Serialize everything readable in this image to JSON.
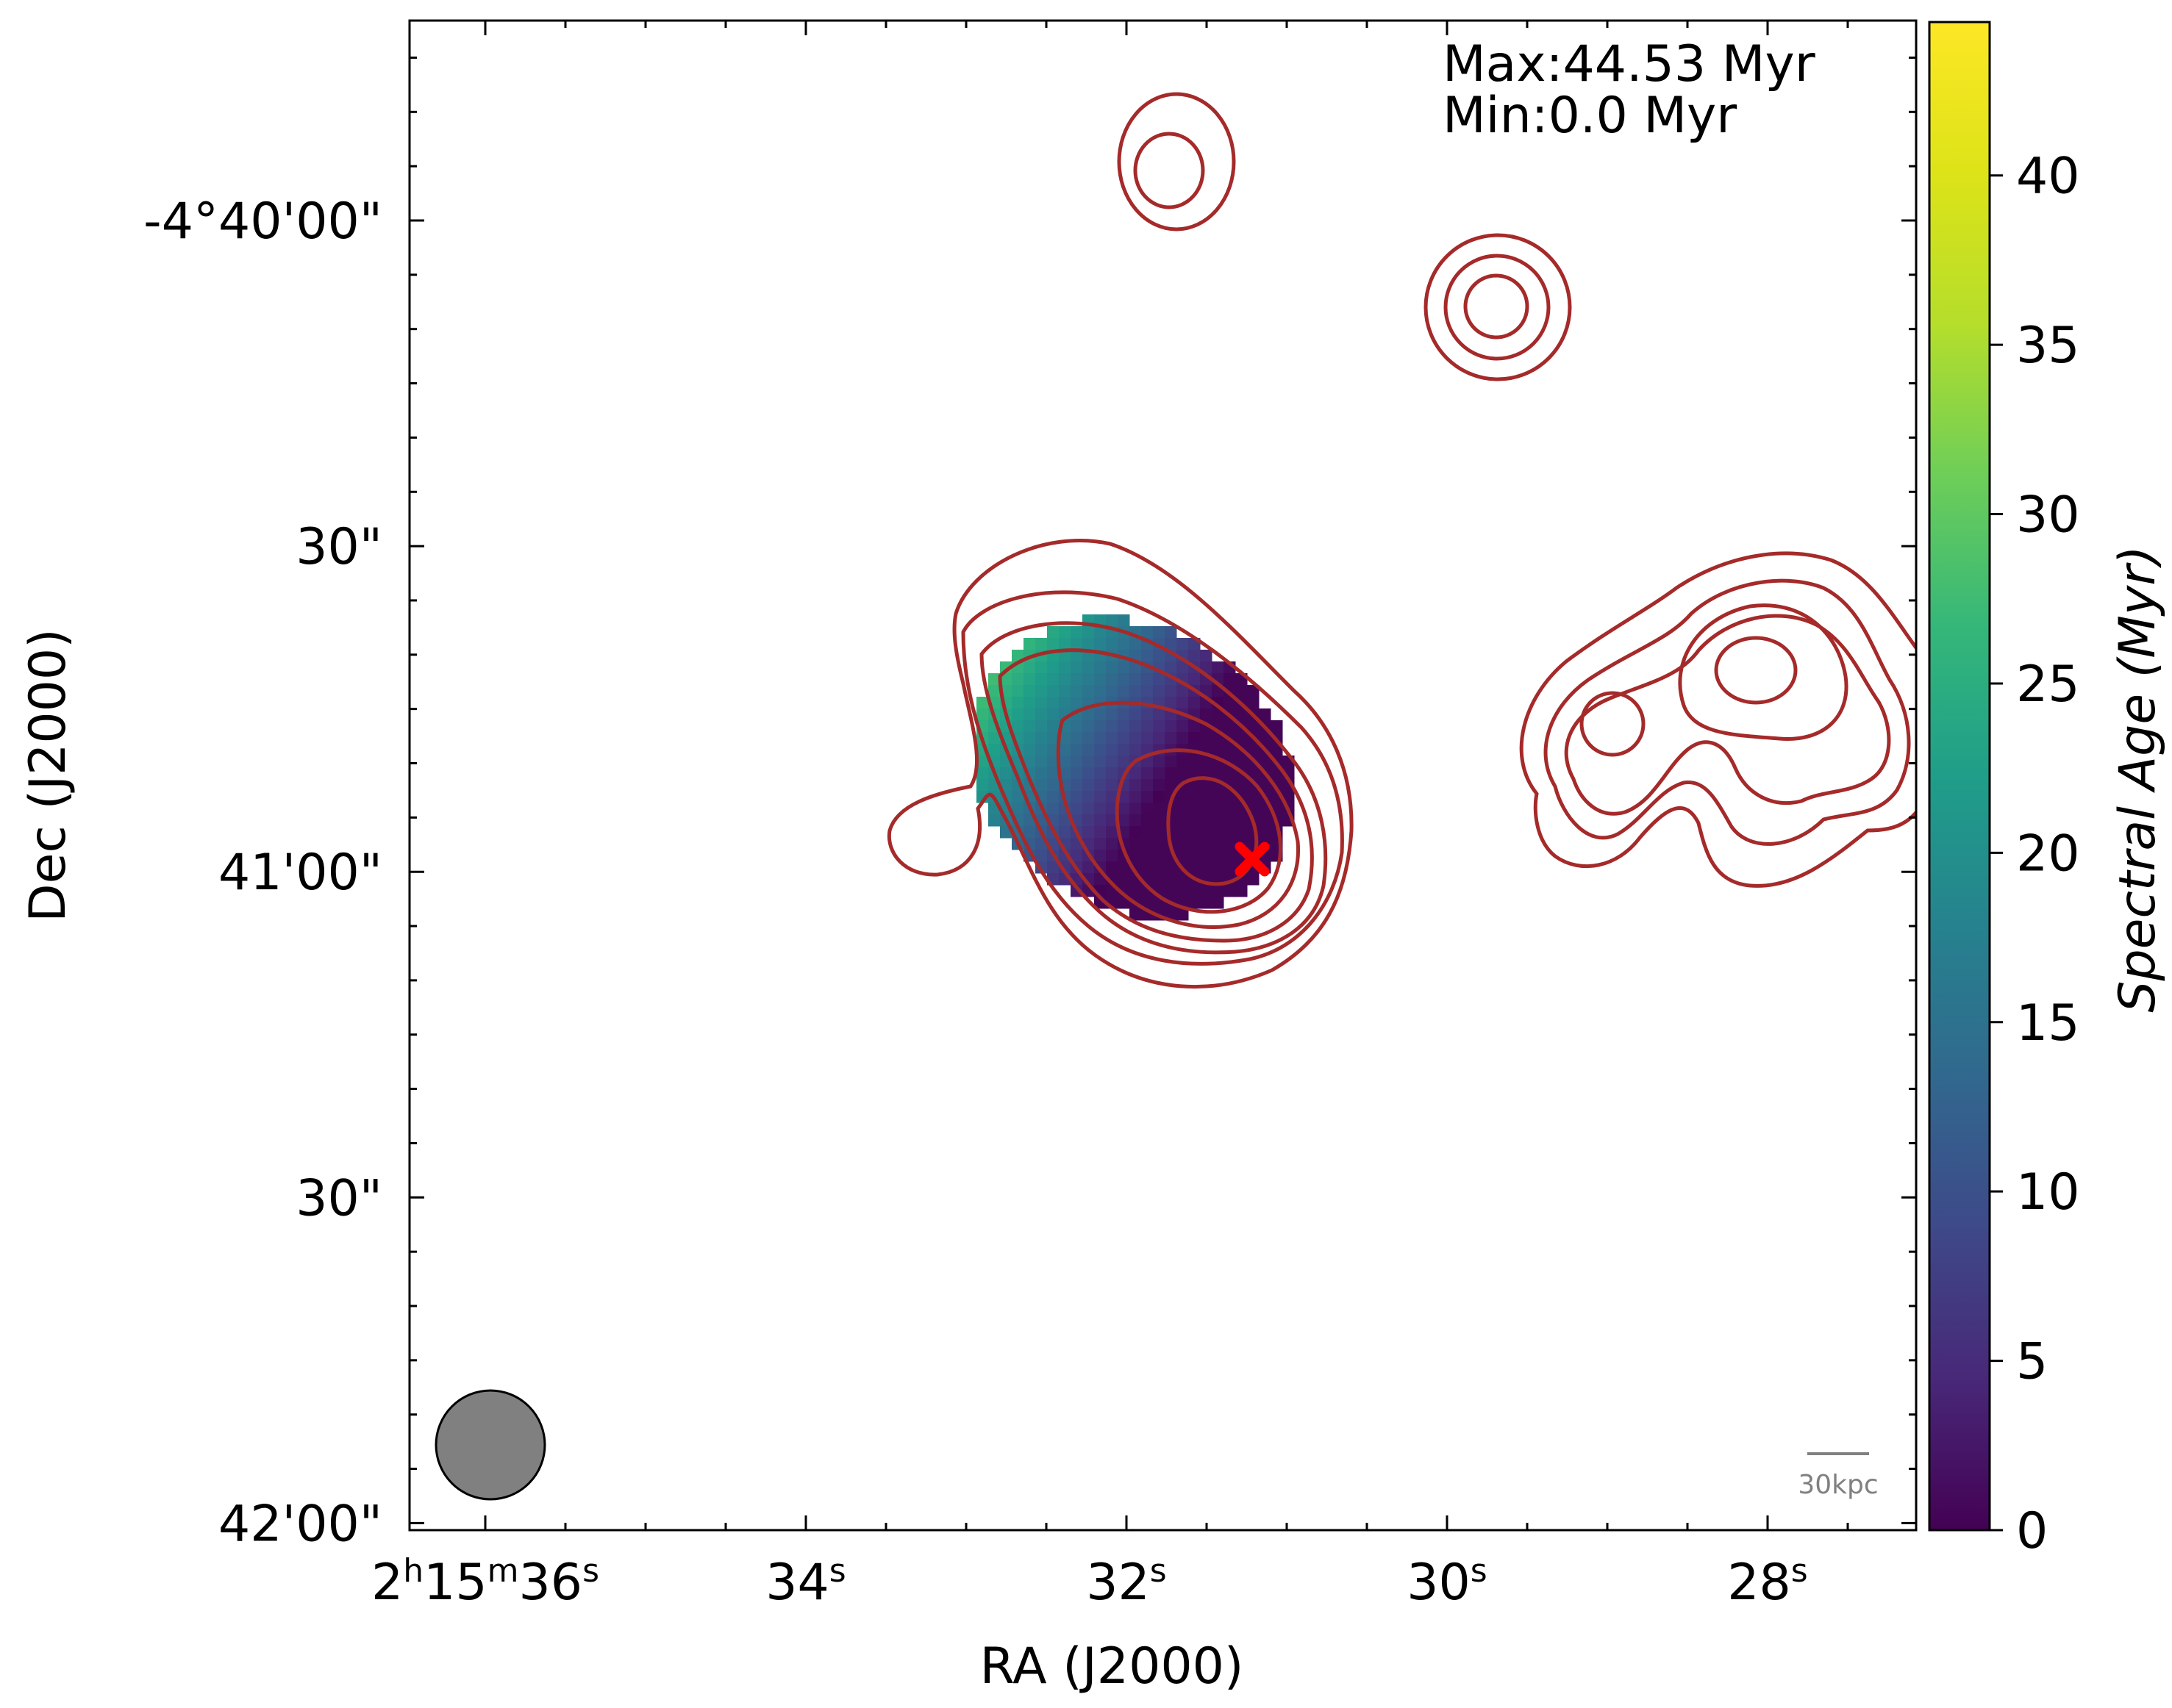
{
  "chart_data": {
    "type": "heatmap",
    "xlabel": "RA (J2000)",
    "ylabel": "Dec (J2000)",
    "x_ticks": [
      {
        "h": "2",
        "m": "15",
        "s": "36",
        "sec": 36
      },
      {
        "s": "34",
        "sec": 34
      },
      {
        "s": "32",
        "sec": 32
      },
      {
        "s": "30",
        "sec": 30
      },
      {
        "s": "28",
        "sec": 28
      }
    ],
    "y_ticks": [
      {
        "label": "-4°40'00\"",
        "arcsec": 0
      },
      {
        "label": "30\"",
        "arcsec": 30
      },
      {
        "label": "41'00\"",
        "arcsec": 60
      },
      {
        "label": "30\"",
        "arcsec": 90
      },
      {
        "label": "42'00\"",
        "arcsec": 120
      }
    ],
    "x_range_sec": [
      36.4,
      27.2
    ],
    "y_range_arcsec": [
      -18,
      120
    ],
    "annotations": {
      "max_text": "Max:44.53 Myr",
      "min_text": "Min:0.0 Myr",
      "scalebar_label": "30kpc"
    },
    "colorbar": {
      "label": "Spectral Age (Myr)",
      "min": 0,
      "max": 44.53,
      "ticks": [
        {
          "value": 0,
          "label": "0"
        },
        {
          "value": 5,
          "label": "5"
        },
        {
          "value": 10,
          "label": "10"
        },
        {
          "value": 15,
          "label": "15"
        },
        {
          "value": 20,
          "label": "20"
        },
        {
          "value": 25,
          "label": "25"
        },
        {
          "value": 30,
          "label": "30"
        },
        {
          "value": 35,
          "label": "35"
        },
        {
          "value": 40,
          "label": "40"
        }
      ],
      "colormap": "viridis"
    },
    "core_marker": {
      "ra_sec": 31.25,
      "dec_arcsec": 59.2,
      "color": "#ff0000"
    },
    "contour_color": "#a52a2a",
    "beam_color": "#808080",
    "sources": [
      {
        "name": "central-lobe",
        "ra_sec": 31.55,
        "dec_arcsec": 56.8,
        "levels": 7
      },
      {
        "name": "compact-source-north",
        "ra_sec": 31.8,
        "dec_arcsec": -4.5,
        "levels": 2
      },
      {
        "name": "compact-source-ne",
        "ra_sec": 29.75,
        "dec_arcsec": 7.8,
        "levels": 3
      },
      {
        "name": "east-double-source",
        "ra_sec": 28.2,
        "dec_arcsec": 42.5,
        "levels": 5
      }
    ]
  }
}
